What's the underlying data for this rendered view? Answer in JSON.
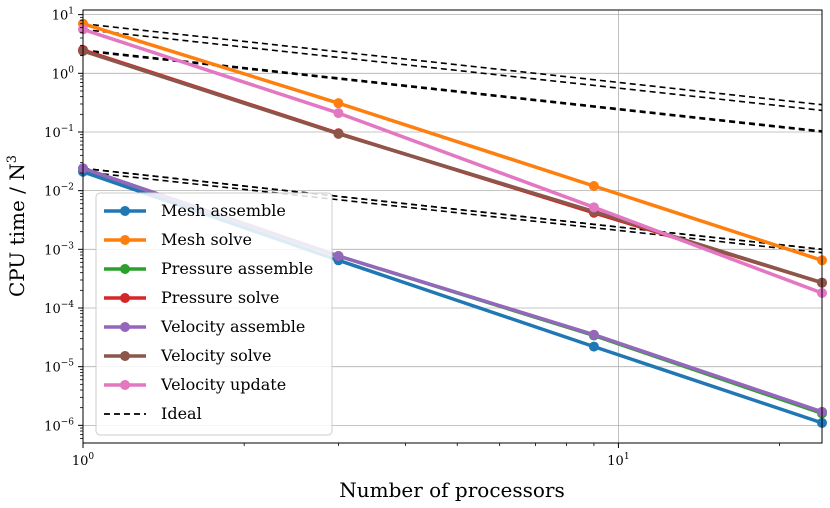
{
  "chart_data": {
    "type": "line",
    "scale": "log-log",
    "title": "",
    "xlabel": "Number of processors",
    "ylabel": "CPU time / N",
    "ylabel_exponent": "3",
    "xlim": [
      1,
      24
    ],
    "ylim": [
      5e-07,
      12
    ],
    "grid": true,
    "legend_position": "lower-left",
    "x_ticks": [
      {
        "value": 1,
        "base": "10",
        "exp": "0"
      },
      {
        "value": 10,
        "base": "10",
        "exp": "1"
      }
    ],
    "y_ticks": [
      {
        "value": 1e-06,
        "base": "10",
        "exp": "−6"
      },
      {
        "value": 1e-05,
        "base": "10",
        "exp": "−5"
      },
      {
        "value": 0.0001,
        "base": "10",
        "exp": "−4"
      },
      {
        "value": 0.001,
        "base": "10",
        "exp": "−3"
      },
      {
        "value": 0.01,
        "base": "10",
        "exp": "−2"
      },
      {
        "value": 0.1,
        "base": "10",
        "exp": "−1"
      },
      {
        "value": 1,
        "base": "10",
        "exp": "0"
      },
      {
        "value": 10,
        "base": "10",
        "exp": "1"
      }
    ],
    "x": [
      1,
      3,
      9,
      24
    ],
    "series": [
      {
        "name": "Mesh assemble",
        "color": "#1f77b4",
        "values": [
          0.021,
          0.00065,
          2.2e-05,
          1.1e-06
        ]
      },
      {
        "name": "Mesh solve",
        "color": "#ff7f0e",
        "values": [
          7.0,
          0.31,
          0.012,
          0.00065
        ]
      },
      {
        "name": "Pressure assemble",
        "color": "#2ca02c",
        "values": [
          0.024,
          0.00077,
          3.4e-05,
          1.6e-06
        ]
      },
      {
        "name": "Pressure solve",
        "color": "#d62728",
        "values": [
          2.5,
          0.095,
          0.0042,
          0.00027
        ]
      },
      {
        "name": "Velocity assemble",
        "color": "#9467bd",
        "values": [
          0.024,
          0.00077,
          3.5e-05,
          1.7e-06
        ]
      },
      {
        "name": "Velocity solve",
        "color": "#8c564b",
        "values": [
          2.4,
          0.093,
          0.0044,
          0.00027
        ]
      },
      {
        "name": "Velocity update",
        "color": "#e377c2",
        "values": [
          5.6,
          0.21,
          0.0052,
          0.00018
        ]
      }
    ],
    "ideal": {
      "name": "Ideal",
      "color": "#000000",
      "starts": [
        0.021,
        7.0,
        0.024,
        2.5,
        0.024,
        2.4,
        5.6
      ]
    }
  }
}
